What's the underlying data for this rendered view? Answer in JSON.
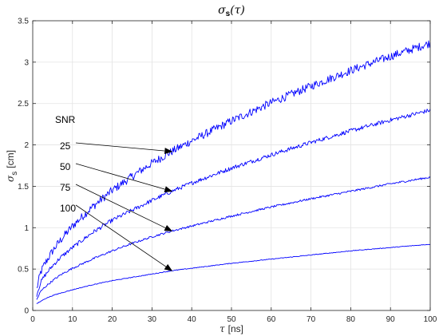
{
  "chart_data": {
    "type": "line",
    "title": "σs(τ)",
    "title_parts": {
      "symbol": "σ",
      "subscript": "s",
      "argument": "(τ)"
    },
    "xlabel": "τ [ns]",
    "xlabel_parts": {
      "symbol": "τ",
      "unit": "[ns]"
    },
    "ylabel": "σs [cm]",
    "ylabel_parts": {
      "symbol": "σ",
      "subscript": "s",
      "unit": "[cm]"
    },
    "xlim": [
      0,
      100
    ],
    "ylim": [
      0,
      3.5
    ],
    "xticks": [
      0,
      10,
      20,
      30,
      40,
      50,
      60,
      70,
      80,
      90,
      100
    ],
    "yticks": [
      0,
      0.5,
      1,
      1.5,
      2,
      2.5,
      3,
      3.5
    ],
    "grid": true,
    "line_color": "#0000ff",
    "x": [
      1,
      2,
      3,
      5,
      7,
      10,
      15,
      20,
      25,
      30,
      35,
      40,
      50,
      60,
      70,
      80,
      90,
      100
    ],
    "series": [
      {
        "values": [
          0.26,
          0.46,
          0.56,
          0.72,
          0.85,
          1.02,
          1.25,
          1.45,
          1.62,
          1.78,
          1.92,
          2.05,
          2.29,
          2.51,
          2.71,
          2.9,
          3.07,
          3.23
        ]
      },
      {
        "values": [
          0.19,
          0.34,
          0.42,
          0.54,
          0.64,
          0.76,
          0.94,
          1.09,
          1.21,
          1.33,
          1.44,
          1.54,
          1.72,
          1.88,
          2.03,
          2.17,
          2.3,
          2.42
        ]
      },
      {
        "values": [
          0.13,
          0.23,
          0.28,
          0.36,
          0.43,
          0.51,
          0.62,
          0.72,
          0.81,
          0.89,
          0.96,
          1.02,
          1.14,
          1.25,
          1.35,
          1.44,
          1.53,
          1.61
        ]
      },
      {
        "values": [
          0.08,
          0.11,
          0.14,
          0.18,
          0.21,
          0.25,
          0.31,
          0.36,
          0.4,
          0.44,
          0.48,
          0.51,
          0.57,
          0.62,
          0.67,
          0.72,
          0.76,
          0.8
        ]
      }
    ],
    "annotation_header": "SNR",
    "annotations": [
      {
        "label": "25",
        "target": [
          35,
          1.92
        ]
      },
      {
        "label": "50",
        "target": [
          35,
          1.44
        ]
      },
      {
        "label": "75",
        "target": [
          35,
          0.96
        ]
      },
      {
        "label": "100",
        "target": [
          35,
          0.48
        ]
      }
    ],
    "noise": [
      0.05,
      0.025,
      0.012,
      0.004
    ]
  }
}
